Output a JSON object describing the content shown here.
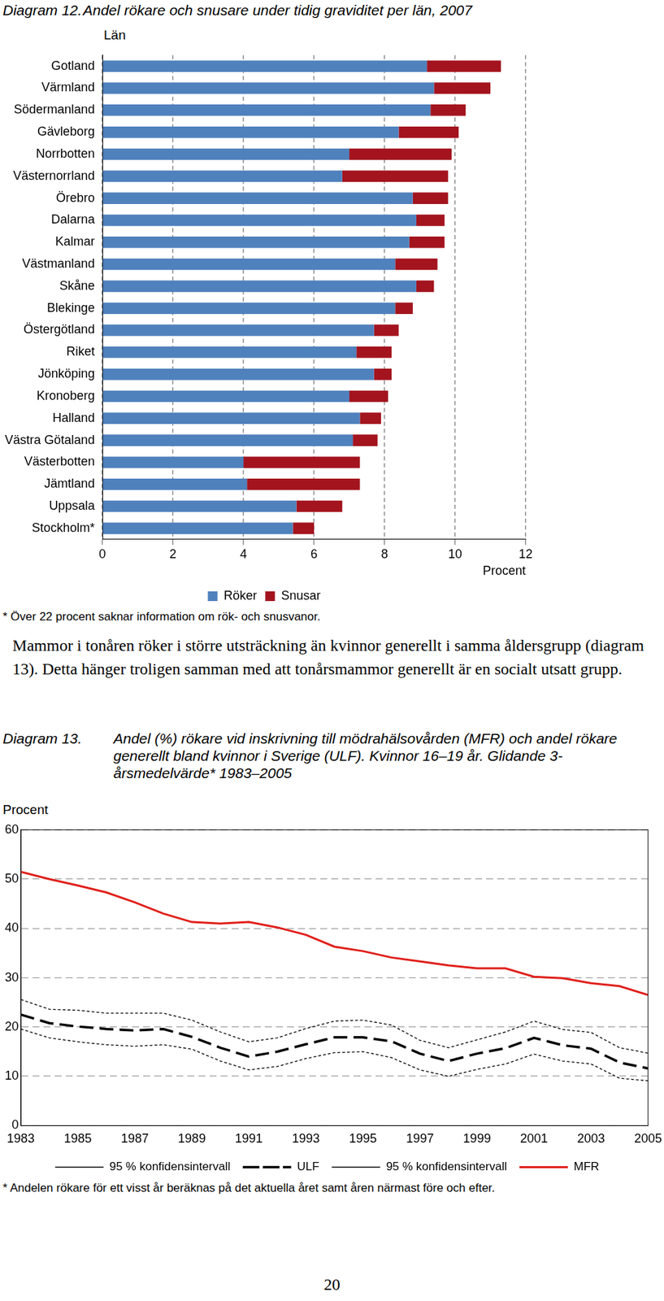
{
  "paragraph": "Mammor i tonåren röker i större utsträckning än kvinnor generellt i samma åldersgrupp (diagram 13). Detta hänger troligen samman med att tonårsmammor generellt är en socialt utsatt grupp.",
  "page_number": "20",
  "chart_data": [
    {
      "type": "bar",
      "label": "Diagram 12.",
      "title": "Andel rökare och snusare under tidig graviditet per län, 2007",
      "orientation": "horizontal",
      "stacked": true,
      "y_label": "Län",
      "x_label": "Procent",
      "note": "* Över 22 procent saknar information om rök- och snusvanor.",
      "categories": [
        "Gotland",
        "Värmland",
        "Södermanland",
        "Gävleborg",
        "Norrbotten",
        "Västernorrland",
        "Örebro",
        "Dalarna",
        "Kalmar",
        "Västmanland",
        "Skåne",
        "Blekinge",
        "Östergötland",
        "Riket",
        "Jönköping",
        "Kronoberg",
        "Halland",
        "Västra Götaland",
        "Västerbotten",
        "Jämtland",
        "Uppsala",
        "Stockholm*"
      ],
      "series": [
        {
          "name": "Röker",
          "color": "#4f81bd",
          "values": [
            9.2,
            9.4,
            9.3,
            8.4,
            7.0,
            6.8,
            8.8,
            8.9,
            8.7,
            8.3,
            8.9,
            8.3,
            7.7,
            7.2,
            7.7,
            7.0,
            7.3,
            7.1,
            4.0,
            4.1,
            5.5,
            5.4
          ]
        },
        {
          "name": "Snusar",
          "color": "#a3141e",
          "values": [
            2.1,
            1.6,
            1.0,
            1.7,
            2.9,
            3.0,
            1.0,
            0.8,
            1.0,
            1.2,
            0.5,
            0.5,
            0.7,
            1.0,
            0.5,
            1.1,
            0.6,
            0.7,
            3.3,
            3.2,
            1.3,
            0.6
          ]
        }
      ],
      "xlim": [
        0,
        12
      ],
      "xticks": [
        0,
        2,
        4,
        6,
        8,
        10,
        12
      ],
      "grid": true,
      "legend": "bottom"
    },
    {
      "type": "line",
      "label": "Diagram 13.",
      "title": "Andel (%) rökare vid inskrivning till mödrahälsovården (MFR) och andel rökare generellt bland kvinnor i Sverige (ULF). Kvinnor 16–19 år. Glidande 3-årsmedelvärde* 1983–2005",
      "y_label": "Procent",
      "note": "* Andelen rökare för ett visst år beräknas på det aktuella året samt åren närmast före och efter.",
      "x": [
        1983,
        1984,
        1985,
        1986,
        1987,
        1988,
        1989,
        1990,
        1991,
        1992,
        1993,
        1994,
        1995,
        1996,
        1997,
        1998,
        1999,
        2000,
        2001,
        2002,
        2003,
        2004,
        2005
      ],
      "series": [
        {
          "name": "95 % konfidensintervall",
          "color": "#000000",
          "line_style": "dotted",
          "values": [
            25.6,
            23.6,
            23.4,
            22.8,
            22.8,
            22.8,
            21.4,
            19.0,
            17.0,
            17.8,
            19.7,
            21.2,
            21.4,
            20.4,
            17.3,
            15.8,
            17.4,
            19.0,
            21.2,
            19.5,
            18.9,
            15.8,
            14.7
          ]
        },
        {
          "name": "ULF",
          "color": "#000000",
          "line_style": "dashed",
          "values": [
            22.5,
            20.8,
            20.1,
            19.6,
            19.3,
            19.6,
            18.0,
            15.8,
            14.0,
            15.0,
            16.5,
            17.9,
            17.9,
            17.1,
            14.6,
            13.1,
            14.6,
            15.7,
            17.8,
            16.3,
            15.6,
            12.8,
            11.6
          ]
        },
        {
          "name": "95 % konfidensintervall",
          "color": "#000000",
          "line_style": "dotted",
          "values": [
            19.6,
            17.8,
            17.0,
            16.4,
            16.1,
            16.4,
            15.5,
            13.1,
            11.3,
            12.0,
            13.6,
            14.8,
            15.0,
            13.8,
            11.3,
            10.0,
            11.4,
            12.5,
            14.5,
            13.1,
            12.5,
            9.6,
            9.1
          ]
        },
        {
          "name": "MFR",
          "color": "#e0201b",
          "line_style": "solid",
          "values": [
            51.5,
            50.0,
            48.7,
            47.3,
            45.3,
            43.0,
            41.3,
            41.0,
            41.3,
            40.2,
            38.7,
            36.3,
            35.4,
            34.1,
            33.3,
            32.5,
            31.9,
            31.9,
            30.2,
            29.9,
            28.9,
            28.3,
            26.5
          ]
        }
      ],
      "xlim": [
        1983,
        2005
      ],
      "xticks": [
        1983,
        1985,
        1987,
        1989,
        1991,
        1993,
        1995,
        1997,
        1999,
        2001,
        2003,
        2005
      ],
      "ylim": [
        0,
        60
      ],
      "yticks": [
        0,
        10,
        20,
        30,
        40,
        50,
        60
      ],
      "grid": true,
      "legend": "bottom"
    }
  ]
}
